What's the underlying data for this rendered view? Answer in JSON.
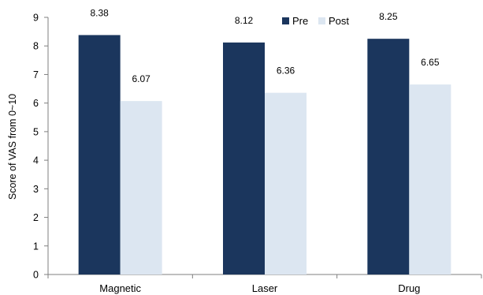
{
  "chart_data": {
    "type": "bar",
    "title": "",
    "xlabel": "",
    "ylabel": "Score of VAS from 0~10",
    "ylim": [
      0,
      9
    ],
    "yticks": [
      0,
      1,
      2,
      3,
      4,
      5,
      6,
      7,
      8,
      9
    ],
    "categories": [
      "Magnetic",
      "Laser",
      "Drug"
    ],
    "series": [
      {
        "name": "Pre",
        "color": "#1b365d",
        "values": [
          8.38,
          8.12,
          8.25
        ],
        "labels": [
          "8.38",
          "8.12",
          "8.25"
        ]
      },
      {
        "name": "Post",
        "color": "#dce6f1",
        "values": [
          6.07,
          6.36,
          6.65
        ],
        "labels": [
          "6.07",
          "6.36",
          "6.65"
        ]
      }
    ],
    "legend_position": "top",
    "grid": false
  }
}
